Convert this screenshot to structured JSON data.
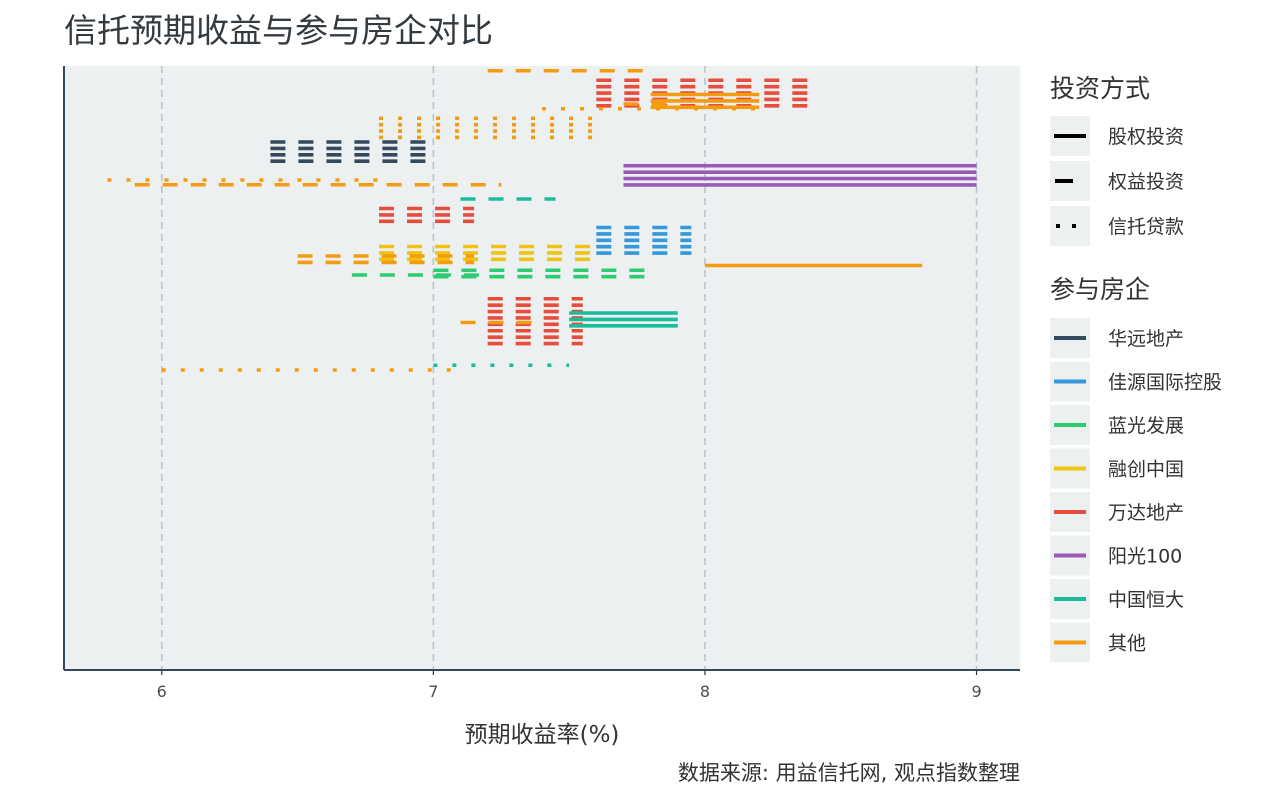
{
  "chart_data": {
    "type": "segment",
    "title": "信托预期收益与参与房企对比",
    "xlabel": "预期收益率(%)",
    "caption": "数据来源: 用益信托网, 观点指数整理",
    "xlim": [
      5.64,
      9.16
    ],
    "xticks": [
      6,
      7,
      8,
      9
    ],
    "grid": "vertical-dashed",
    "legend_position": "right",
    "legend_type": {
      "title": "投资方式",
      "items": [
        {
          "key": "equity",
          "label": "股权投资",
          "line": "solid"
        },
        {
          "key": "rights",
          "label": "权益投资",
          "line": "dashed"
        },
        {
          "key": "loan",
          "label": "信托贷款",
          "line": "dotted"
        }
      ]
    },
    "legend_company": {
      "title": "参与房企",
      "items": [
        {
          "key": "huayuan",
          "label": "华远地产",
          "color": "#34495e"
        },
        {
          "key": "jiayuan",
          "label": "佳源国际控股",
          "color": "#3498db"
        },
        {
          "key": "languang",
          "label": "蓝光发展",
          "color": "#2ecc71"
        },
        {
          "key": "rongchuang",
          "label": "融创中国",
          "color": "#f1c40f"
        },
        {
          "key": "wanda",
          "label": "万达地产",
          "color": "#e74c3c"
        },
        {
          "key": "yangguang",
          "label": "阳光100",
          "color": "#9b59b6"
        },
        {
          "key": "hengda",
          "label": "中国恒大",
          "color": "#1abc9c"
        },
        {
          "key": "other",
          "label": "其他",
          "color": "#f39c12"
        }
      ]
    },
    "segments": [
      {
        "company": "other",
        "type": "rights",
        "x": [
          7.2,
          7.8
        ],
        "lines": 1,
        "row": 1
      },
      {
        "company": "wanda",
        "type": "rights",
        "x": [
          7.6,
          8.4
        ],
        "lines": 5,
        "row": 3
      },
      {
        "company": "other",
        "type": "equity",
        "x": [
          7.8,
          8.2
        ],
        "lines": 3,
        "row": 6
      },
      {
        "company": "other",
        "type": "rights",
        "x": [
          7.7,
          7.9
        ],
        "lines": 1,
        "row": 8
      },
      {
        "company": "other",
        "type": "loan",
        "x": [
          7.4,
          8.2
        ],
        "lines": 1,
        "row": 9
      },
      {
        "company": "other",
        "type": "loan",
        "x": [
          6.8,
          7.6
        ],
        "lines": 4,
        "row": 11
      },
      {
        "company": "huayuan",
        "type": "rights",
        "x": [
          6.4,
          7.0
        ],
        "lines": 4,
        "row": 16
      },
      {
        "company": "yangguang",
        "type": "equity",
        "x": [
          7.7,
          9.0
        ],
        "lines": 4,
        "row": 21
      },
      {
        "company": "other",
        "type": "loan",
        "x": [
          5.8,
          6.8
        ],
        "lines": 1,
        "row": 24
      },
      {
        "company": "other",
        "type": "rights",
        "x": [
          5.9,
          7.25
        ],
        "lines": 1,
        "row": 25
      },
      {
        "company": "hengda",
        "type": "rights",
        "x": [
          7.1,
          7.45
        ],
        "lines": 1,
        "row": 28
      },
      {
        "company": "wanda",
        "type": "rights",
        "x": [
          6.8,
          7.15
        ],
        "lines": 3,
        "row": 30
      },
      {
        "company": "jiayuan",
        "type": "rights",
        "x": [
          7.6,
          7.95
        ],
        "lines": 5,
        "row": 34
      },
      {
        "company": "rongchuang",
        "type": "rights",
        "x": [
          6.8,
          7.6
        ],
        "lines": 3,
        "row": 38
      },
      {
        "company": "other",
        "type": "rights",
        "x": [
          6.5,
          7.15
        ],
        "lines": 2,
        "row": 40
      },
      {
        "company": "other",
        "type": "equity",
        "x": [
          8.0,
          8.8
        ],
        "lines": 1,
        "row": 42
      },
      {
        "company": "languang",
        "type": "rights",
        "x": [
          7.0,
          7.8
        ],
        "lines": 2,
        "row": 43
      },
      {
        "company": "languang",
        "type": "rights",
        "x": [
          6.7,
          7.2
        ],
        "lines": 1,
        "row": 44
      },
      {
        "company": "wanda",
        "type": "rights",
        "x": [
          7.2,
          7.55
        ],
        "lines": 8,
        "row": 49
      },
      {
        "company": "hengda",
        "type": "equity",
        "x": [
          7.5,
          7.9
        ],
        "lines": 3,
        "row": 52
      },
      {
        "company": "other",
        "type": "rights",
        "x": [
          7.1,
          7.4
        ],
        "lines": 1,
        "row": 54
      },
      {
        "company": "hengda",
        "type": "loan",
        "x": [
          7.0,
          7.5
        ],
        "lines": 1,
        "row": 63
      },
      {
        "company": "other",
        "type": "loan",
        "x": [
          6.0,
          7.1
        ],
        "lines": 1,
        "row": 64
      }
    ]
  }
}
